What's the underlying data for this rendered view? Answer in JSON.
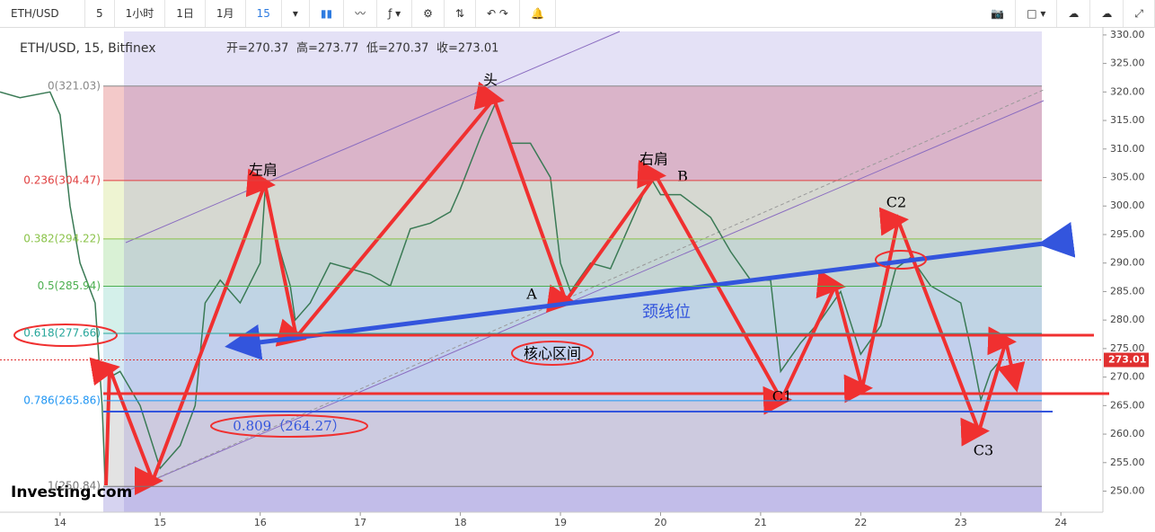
{
  "toolbar": {
    "symbol": "ETH/USD",
    "intervals": [
      "5",
      "1小时",
      "1日",
      "1月",
      "15"
    ]
  },
  "chart_data": {
    "type": "line",
    "title": "ETH/USD, 15, Bitfinex",
    "legend_values": [
      "开=270.37",
      "高=273.77",
      "低=270.37",
      "收=273.01"
    ],
    "x": [
      13.4,
      13.6,
      13.9,
      14.0,
      14.1,
      14.2,
      14.35,
      14.42,
      14.45,
      14.5,
      14.6,
      14.8,
      15.0,
      15.2,
      15.35,
      15.45,
      15.6,
      15.8,
      16.0,
      16.05,
      16.15,
      16.3,
      16.35,
      16.5,
      16.7,
      16.9,
      17.1,
      17.3,
      17.5,
      17.7,
      17.9,
      18.0,
      18.2,
      18.35,
      18.5,
      18.7,
      18.9,
      19.0,
      19.1,
      19.3,
      19.5,
      19.7,
      19.9,
      20.0,
      20.2,
      20.5,
      20.7,
      20.9,
      21.1,
      21.2,
      21.4,
      21.6,
      21.8,
      22.0,
      22.2,
      22.35,
      22.5,
      22.7,
      23.0,
      23.1,
      23.2,
      23.3,
      23.4
    ],
    "values": [
      320,
      319,
      320,
      316,
      300,
      290,
      283,
      265,
      252,
      270,
      271,
      265,
      254,
      258,
      265,
      283,
      287,
      283,
      290,
      303,
      295,
      286,
      280,
      283,
      290,
      289,
      288,
      286,
      296,
      297,
      299,
      303,
      312,
      318,
      311,
      311,
      305,
      290,
      285,
      290,
      289,
      297,
      305,
      302,
      302,
      298,
      292,
      287,
      287,
      271,
      276,
      280,
      285,
      274,
      279,
      289,
      291,
      286,
      283,
      275,
      266,
      271,
      273
    ],
    "color": "#3a7a55",
    "xlim": [
      13.4,
      24.42
    ],
    "ylim": [
      246.3,
      331.4
    ],
    "xticks": [
      14,
      15,
      16,
      17,
      18,
      19,
      20,
      21,
      22,
      23,
      24
    ],
    "yticks": [
      {
        "value": 250,
        "label": "250.00"
      },
      {
        "value": 255,
        "label": "255.00"
      },
      {
        "value": 260,
        "label": "260.00"
      },
      {
        "value": 265,
        "label": "265.00"
      },
      {
        "value": 270,
        "label": "270.00"
      },
      {
        "value": 275,
        "label": "275.00"
      },
      {
        "value": 280,
        "label": "280.00"
      },
      {
        "value": 285,
        "label": "285.00"
      },
      {
        "value": 290,
        "label": "290.00"
      },
      {
        "value": 295,
        "label": "295.00"
      },
      {
        "value": 300,
        "label": "300.00"
      },
      {
        "value": 305,
        "label": "305.00"
      },
      {
        "value": 310,
        "label": "310.00"
      },
      {
        "value": 315,
        "label": "315.00"
      },
      {
        "value": 320,
        "label": "320.00"
      },
      {
        "value": 325,
        "label": "325.00"
      },
      {
        "value": 330,
        "label": "330.00"
      }
    ],
    "fib_levels": [
      {
        "value": 321.03,
        "label": "0(321.03)",
        "color": "#888888",
        "band": "#f3c9c9"
      },
      {
        "value": 304.47,
        "label": "0.236(304.47)",
        "color": "#e04040",
        "band": "#eef4d2"
      },
      {
        "value": 294.22,
        "label": "0.382(294.22)",
        "color": "#8bc34a",
        "band": "#d9f1d5"
      },
      {
        "value": 285.94,
        "label": "0.5(285.94)",
        "color": "#4caf50",
        "band": "#d4f0ea"
      },
      {
        "value": 277.66,
        "label": "0.618(277.66)",
        "color": "#26a69a",
        "band": "#d6e9f4"
      },
      {
        "value": 265.86,
        "label": "0.786(265.86)",
        "color": "#2196f3",
        "band": "#e3e3e3"
      },
      {
        "value": 250.84,
        "label": "1(250.84)",
        "color": "#777777",
        "band": "#d6d3f0"
      }
    ],
    "current_price": 273.01,
    "annotations": [
      "头",
      "左肩",
      "右肩",
      "A",
      "B",
      "C1",
      "C2",
      "C3",
      "颈线位",
      "核心区间",
      "0.809（264.27）"
    ],
    "watermark": "Investing.com"
  }
}
